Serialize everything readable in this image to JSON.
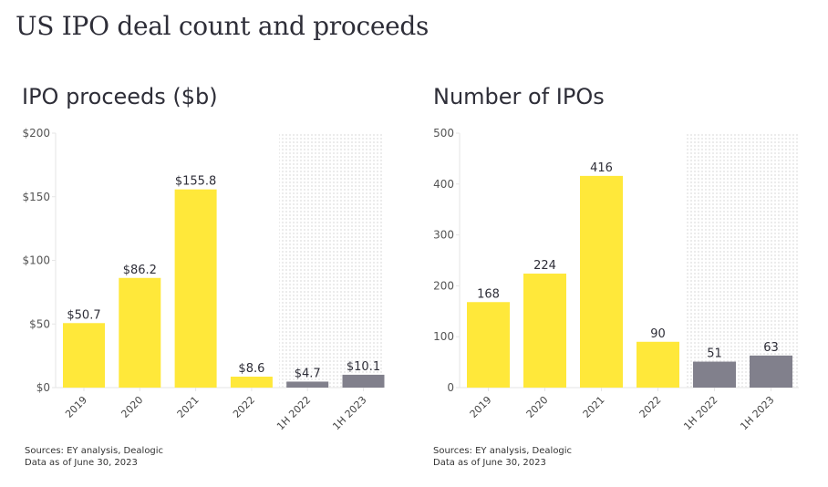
{
  "page": {
    "title": "US IPO deal count and proceeds"
  },
  "colors": {
    "annual": "#ffe83a",
    "half_year": "#81808c",
    "axis": "#e6e6e6",
    "dots": "#ececec"
  },
  "chart_data": [
    {
      "type": "bar",
      "title": "IPO proceeds ($b)",
      "xlabel": "",
      "ylabel": "",
      "categories": [
        "2019",
        "2020",
        "2021",
        "2022",
        "1H 2022",
        "1H 2023"
      ],
      "values": [
        50.7,
        86.2,
        155.8,
        8.6,
        4.7,
        10.1
      ],
      "data_labels": [
        "$50.7",
        "$86.2",
        "$155.8",
        "$8.6",
        "$4.7",
        "$10.1"
      ],
      "series_type": [
        "annual",
        "annual",
        "annual",
        "annual",
        "half_year",
        "half_year"
      ],
      "ylim": [
        0,
        200
      ],
      "yticks": [
        0,
        50,
        100,
        150,
        200
      ],
      "ytick_labels": [
        "$0",
        "$50",
        "$100",
        "$150",
        "$200"
      ],
      "highlighted_region": [
        "1H 2022",
        "1H 2023"
      ],
      "grid": false,
      "footnote": [
        "Sources: EY analysis, Dealogic",
        "Data as of June 30, 2023"
      ]
    },
    {
      "type": "bar",
      "title": "Number of IPOs",
      "xlabel": "",
      "ylabel": "",
      "categories": [
        "2019",
        "2020",
        "2021",
        "2022",
        "1H 2022",
        "1H 2023"
      ],
      "values": [
        168,
        224,
        416,
        90,
        51,
        63
      ],
      "data_labels": [
        "168",
        "224",
        "416",
        "90",
        "51",
        "63"
      ],
      "series_type": [
        "annual",
        "annual",
        "annual",
        "annual",
        "half_year",
        "half_year"
      ],
      "ylim": [
        0,
        500
      ],
      "yticks": [
        0,
        100,
        200,
        300,
        400,
        500
      ],
      "ytick_labels": [
        "0",
        "100",
        "200",
        "300",
        "400",
        "500"
      ],
      "highlighted_region": [
        "1H 2022",
        "1H 2023"
      ],
      "grid": false,
      "footnote": [
        "Sources: EY analysis, Dealogic",
        "Data as of June 30, 2023"
      ]
    }
  ]
}
